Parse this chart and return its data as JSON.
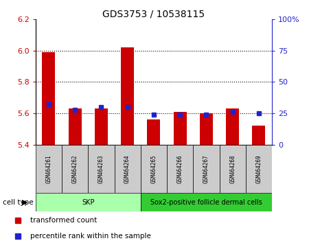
{
  "title": "GDS3753 / 10538115",
  "samples": [
    "GSM464261",
    "GSM464262",
    "GSM464263",
    "GSM464264",
    "GSM464265",
    "GSM464266",
    "GSM464267",
    "GSM464268",
    "GSM464269"
  ],
  "transformed_counts": [
    5.99,
    5.63,
    5.63,
    6.02,
    5.56,
    5.61,
    5.6,
    5.63,
    5.52
  ],
  "percentile_ranks": [
    32,
    28,
    30,
    30,
    24,
    24,
    24,
    26,
    25
  ],
  "ylim_left": [
    5.4,
    6.2
  ],
  "ylim_right": [
    0,
    100
  ],
  "yticks_left": [
    5.4,
    5.6,
    5.8,
    6.0,
    6.2
  ],
  "yticks_right": [
    0,
    25,
    50,
    75,
    100
  ],
  "ytick_labels_right": [
    "0",
    "25",
    "50",
    "75",
    "100%"
  ],
  "cell_type_labels": [
    "SKP",
    "Sox2-positive follicle dermal cells"
  ],
  "cell_type_ranges": [
    [
      0,
      3
    ],
    [
      4,
      8
    ]
  ],
  "cell_type_colors": [
    "#AAFFAA",
    "#33CC33"
  ],
  "bar_color": "#CC0000",
  "dot_color": "#2222CC",
  "left_axis_color": "#CC0000",
  "right_axis_color": "#2222CC",
  "bar_width": 0.5,
  "base_value": 5.4,
  "legend_labels": [
    "transformed count",
    "percentile rank within the sample"
  ]
}
